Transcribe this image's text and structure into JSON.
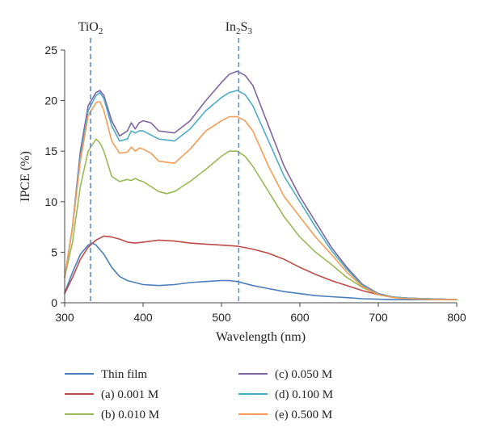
{
  "chart_data": {
    "type": "line",
    "xlabel": "Wavelength (nm)",
    "ylabel": "IPCE (%)",
    "xlim": [
      300,
      800
    ],
    "ylim": [
      0,
      25
    ],
    "xticks": [
      "300",
      "400",
      "500",
      "600",
      "700",
      "800"
    ],
    "yticks": [
      "0",
      "5",
      "10",
      "15",
      "20",
      "25"
    ],
    "grid": false,
    "legend_position": "bottom",
    "annotations": [
      {
        "base": "TiO",
        "sub": "2",
        "x": 333
      },
      {
        "base": "In",
        "sub": "2",
        "base2": "S",
        "sub2": "3",
        "x": 522
      }
    ],
    "series": [
      {
        "name": "Thin film",
        "color": "#4a7ebb",
        "x": [
          300,
          310,
          320,
          330,
          335,
          340,
          350,
          360,
          370,
          380,
          400,
          420,
          440,
          460,
          480,
          500,
          510,
          520,
          530,
          540,
          560,
          580,
          600,
          620,
          640,
          660,
          680,
          700,
          720,
          740,
          760,
          780,
          800
        ],
        "y": [
          1.0,
          3.0,
          4.8,
          5.7,
          5.9,
          5.7,
          4.8,
          3.5,
          2.6,
          2.2,
          1.8,
          1.7,
          1.8,
          2.0,
          2.1,
          2.2,
          2.2,
          2.1,
          1.9,
          1.7,
          1.4,
          1.1,
          0.9,
          0.7,
          0.6,
          0.5,
          0.4,
          0.35,
          0.3,
          0.3,
          0.3,
          0.3,
          0.3
        ]
      },
      {
        "name": "(a) 0.001 M",
        "color": "#be4b48",
        "x": [
          300,
          310,
          320,
          330,
          340,
          350,
          360,
          370,
          380,
          390,
          400,
          420,
          440,
          460,
          480,
          500,
          520,
          540,
          560,
          580,
          600,
          620,
          640,
          660,
          680,
          700,
          720,
          740,
          760,
          780,
          800
        ],
        "y": [
          0.9,
          2.5,
          4.3,
          5.5,
          6.2,
          6.6,
          6.5,
          6.3,
          6.0,
          5.9,
          6.0,
          6.2,
          6.1,
          5.9,
          5.8,
          5.7,
          5.6,
          5.3,
          4.9,
          4.3,
          3.5,
          2.8,
          2.2,
          1.7,
          1.2,
          0.8,
          0.55,
          0.45,
          0.4,
          0.35,
          0.3
        ]
      },
      {
        "name": "(b) 0.010 M",
        "color": "#98b954",
        "x": [
          300,
          310,
          320,
          330,
          340,
          345,
          350,
          360,
          370,
          380,
          385,
          390,
          395,
          400,
          410,
          420,
          430,
          440,
          450,
          460,
          480,
          500,
          510,
          520,
          530,
          540,
          560,
          580,
          600,
          620,
          640,
          660,
          680,
          700,
          720,
          740,
          760,
          780,
          800
        ],
        "y": [
          2.5,
          6.0,
          11.5,
          15.0,
          16.2,
          15.8,
          15.0,
          12.5,
          12.0,
          12.2,
          12.1,
          12.3,
          12.1,
          12.0,
          11.5,
          11.0,
          10.8,
          11.0,
          11.5,
          12.0,
          13.2,
          14.5,
          15.0,
          15.0,
          14.5,
          13.5,
          11.0,
          8.5,
          6.5,
          5.0,
          3.8,
          2.5,
          1.5,
          0.8,
          0.5,
          0.4,
          0.35,
          0.3,
          0.3
        ]
      },
      {
        "name": "(c) 0.050 M",
        "color": "#7f64a2",
        "x": [
          300,
          310,
          320,
          330,
          340,
          345,
          350,
          360,
          370,
          380,
          385,
          390,
          395,
          400,
          410,
          420,
          440,
          460,
          480,
          500,
          510,
          520,
          530,
          540,
          560,
          580,
          600,
          620,
          640,
          660,
          680,
          700,
          720,
          740,
          760,
          780,
          800
        ],
        "y": [
          2.5,
          7.5,
          15.0,
          19.5,
          20.8,
          21.0,
          20.5,
          18.0,
          16.5,
          17.0,
          17.8,
          17.2,
          17.8,
          18.0,
          17.8,
          17.0,
          16.8,
          18.0,
          20.0,
          21.8,
          22.6,
          22.9,
          22.5,
          21.5,
          17.5,
          13.5,
          10.5,
          8.0,
          5.5,
          3.5,
          1.8,
          0.9,
          0.55,
          0.45,
          0.4,
          0.35,
          0.3
        ]
      },
      {
        "name": "(d) 0.100 M",
        "color": "#4bacc6",
        "x": [
          300,
          310,
          320,
          330,
          340,
          345,
          350,
          360,
          370,
          380,
          385,
          390,
          395,
          400,
          410,
          420,
          440,
          460,
          480,
          500,
          510,
          520,
          530,
          540,
          560,
          580,
          600,
          620,
          640,
          660,
          680,
          700,
          720,
          740,
          760,
          780,
          800
        ],
        "y": [
          2.5,
          7.5,
          14.5,
          19.0,
          20.5,
          20.8,
          20.2,
          17.5,
          16.0,
          16.2,
          17.0,
          16.8,
          17.0,
          17.0,
          16.6,
          16.2,
          16.0,
          17.2,
          19.0,
          20.3,
          20.8,
          21.0,
          20.6,
          19.5,
          16.0,
          12.5,
          10.0,
          7.5,
          5.2,
          3.3,
          1.7,
          0.85,
          0.55,
          0.45,
          0.4,
          0.35,
          0.3
        ]
      },
      {
        "name": "(e) 0.500 M",
        "color": "#f59d56",
        "x": [
          300,
          310,
          320,
          330,
          340,
          345,
          350,
          360,
          370,
          380,
          385,
          390,
          395,
          400,
          410,
          420,
          440,
          460,
          480,
          500,
          510,
          520,
          530,
          540,
          560,
          580,
          600,
          620,
          640,
          660,
          680,
          700,
          720,
          740,
          760,
          780,
          800
        ],
        "y": [
          2.5,
          7.5,
          14.0,
          18.5,
          19.8,
          19.9,
          19.0,
          16.0,
          14.8,
          14.9,
          15.4,
          15.0,
          15.3,
          15.2,
          14.8,
          14.0,
          13.8,
          15.2,
          17.0,
          18.0,
          18.4,
          18.4,
          18.0,
          17.0,
          13.5,
          10.5,
          8.5,
          6.5,
          4.8,
          3.0,
          1.6,
          0.8,
          0.5,
          0.4,
          0.35,
          0.3,
          0.3
        ]
      }
    ]
  }
}
